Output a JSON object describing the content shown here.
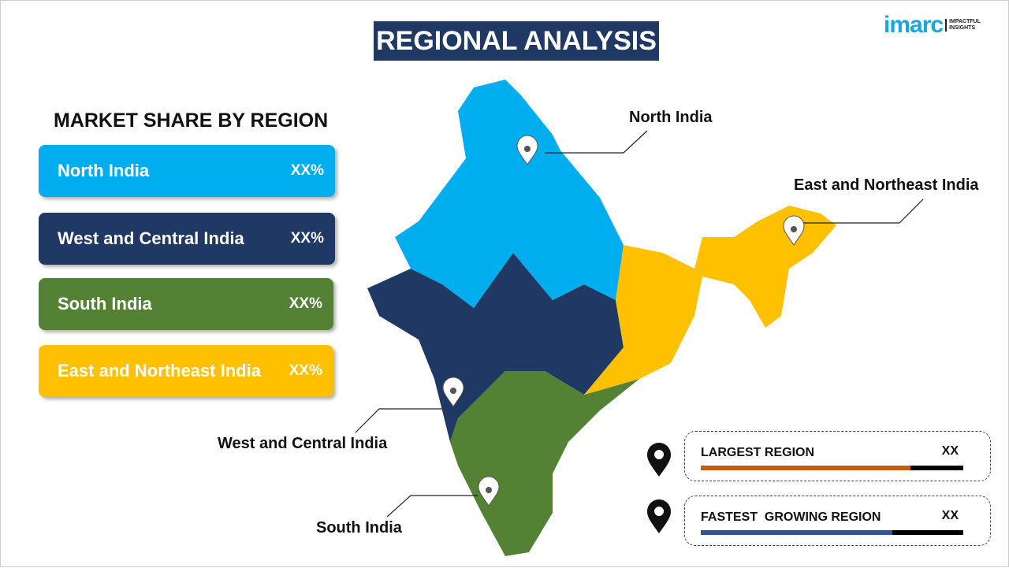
{
  "title": "REGIONAL ANALYSIS",
  "logo": {
    "brand": "imarc",
    "tagline_1": "IMPACTFUL",
    "tagline_2": "INSIGHTS"
  },
  "market_share": {
    "heading": "MARKET SHARE BY REGION",
    "regions": [
      {
        "name": "North India",
        "value": "XX%",
        "color": "#00aeef"
      },
      {
        "name": "West and Central India",
        "value": "XX%",
        "color": "#1f3864"
      },
      {
        "name": "South India",
        "value": "XX%",
        "color": "#548235"
      },
      {
        "name": "East and Northeast India",
        "value": "XX%",
        "color": "#ffc000"
      }
    ]
  },
  "map_labels": {
    "north": "North India",
    "east": "East and Northeast India",
    "west": "West and Central India",
    "south": "South India"
  },
  "stats": [
    {
      "label": "LARGEST REGION",
      "value": "XX",
      "bar_fill_percent": 80,
      "color": "#c55a11"
    },
    {
      "label": "FASTEST  GROWING REGION",
      "value": "XX",
      "bar_fill_percent": 73,
      "color": "#2f5597"
    }
  ]
}
